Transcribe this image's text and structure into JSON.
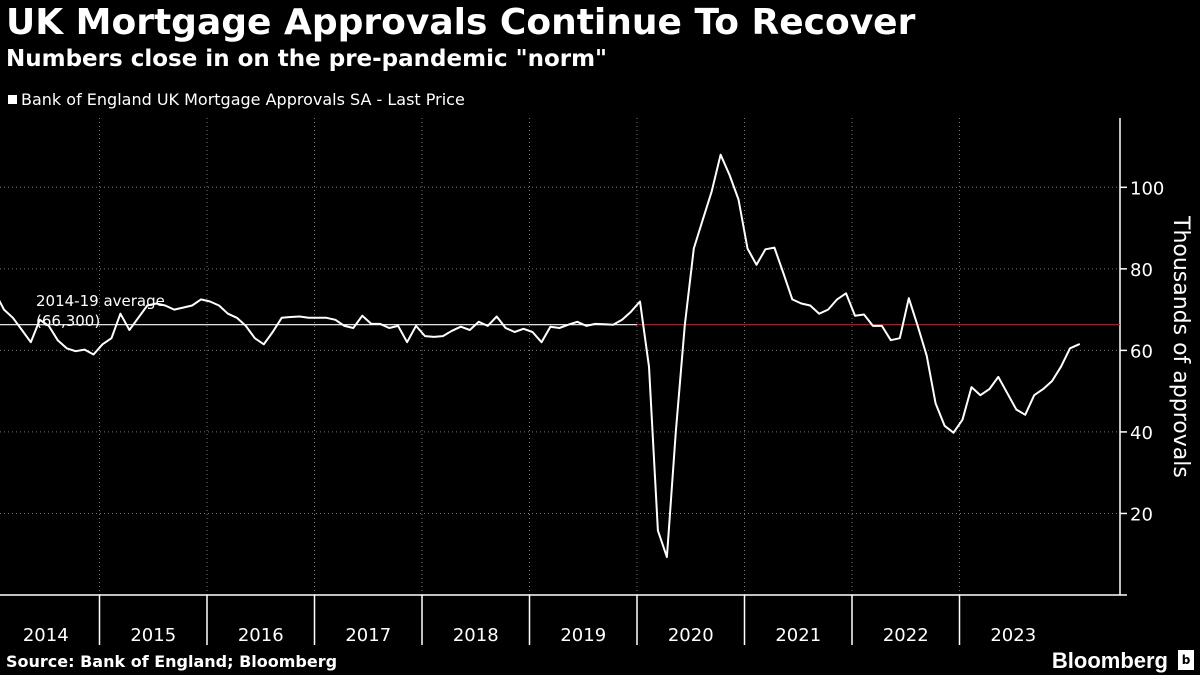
{
  "chart_data": {
    "type": "line",
    "title": "UK Mortgage Approvals Continue To Recover",
    "subtitle": "Numbers close in on the pre-pandemic \"norm\"",
    "legend": "Bank of England UK Mortgage Approvals SA - Last Price",
    "ylabel": "Thousands of approvals",
    "xlabel": "",
    "ylim": [
      0,
      117
    ],
    "yticks": [
      20,
      40,
      60,
      80,
      100
    ],
    "ytick_labels": [
      "20",
      "40",
      "60",
      "80",
      "100"
    ],
    "years": [
      "2014",
      "2015",
      "2016",
      "2017",
      "2018",
      "2019",
      "2020",
      "2021",
      "2022",
      "2023"
    ],
    "grid": true,
    "reference_line": {
      "label_line1": "2014-19 average",
      "label_line2": "(66,300)",
      "value": 66.3,
      "color": "#e0141e"
    },
    "series": [
      {
        "name": "Bank of England UK Mortgage Approvals SA - Last Price",
        "start": "2014-01",
        "values": [
          74.2,
          70.0,
          68.0,
          65.0,
          62.0,
          67.5,
          66.0,
          62.5,
          60.5,
          59.8,
          60.2,
          59.0,
          61.5,
          63.0,
          69.0,
          65.0,
          68.0,
          71.0,
          71.5,
          71.0,
          70.0,
          70.5,
          71.0,
          72.5,
          72.0,
          71.0,
          69.0,
          68.0,
          66.0,
          63.0,
          61.5,
          64.5,
          68.0,
          68.2,
          68.3,
          68.0,
          68.0,
          68.0,
          67.5,
          66.0,
          65.5,
          68.5,
          66.5,
          66.5,
          65.5,
          66.0,
          62.0,
          66.0,
          63.5,
          63.3,
          63.5,
          64.8,
          65.8,
          65.0,
          67.0,
          66.0,
          68.3,
          65.5,
          64.5,
          65.3,
          64.5,
          62.0,
          65.8,
          65.5,
          66.3,
          67.0,
          66.0,
          66.5,
          66.4,
          66.3,
          67.5,
          69.5,
          72.0,
          56.0,
          15.8,
          9.3,
          40.0,
          66.2,
          85.0,
          92.0,
          99.0,
          108.0,
          103.0,
          97.0,
          85.0,
          81.0,
          84.8,
          85.2,
          79.0,
          72.5,
          71.5,
          71.0,
          69.0,
          70.0,
          72.5,
          74.0,
          68.5,
          68.8,
          66.0,
          66.0,
          62.5,
          63.0,
          72.8,
          66.0,
          58.7,
          47.0,
          41.5,
          39.8,
          43.0,
          51.0,
          49.0,
          50.5,
          53.5,
          49.5,
          45.5,
          44.2,
          49.0,
          50.5,
          52.5,
          56.0,
          60.5,
          61.5
        ]
      }
    ]
  },
  "footer": {
    "source": "Source: Bank of England; Bloomberg",
    "brand": "Bloomberg",
    "brand_icon": "b"
  },
  "colors": {
    "line": "#ffffff",
    "background": "#000000",
    "grid": "#777777",
    "reference": "#e0141e"
  }
}
